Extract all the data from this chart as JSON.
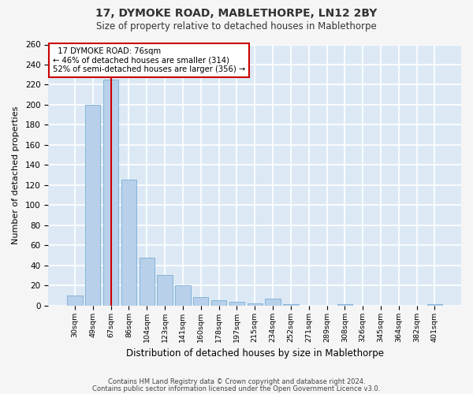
{
  "title1": "17, DYMOKE ROAD, MABLETHORPE, LN12 2BY",
  "title2": "Size of property relative to detached houses in Mablethorpe",
  "xlabel": "Distribution of detached houses by size in Mablethorpe",
  "ylabel": "Number of detached properties",
  "categories": [
    "30sqm",
    "49sqm",
    "67sqm",
    "86sqm",
    "104sqm",
    "123sqm",
    "141sqm",
    "160sqm",
    "178sqm",
    "197sqm",
    "215sqm",
    "234sqm",
    "252sqm",
    "271sqm",
    "289sqm",
    "308sqm",
    "326sqm",
    "345sqm",
    "364sqm",
    "382sqm",
    "401sqm"
  ],
  "values": [
    10,
    200,
    225,
    125,
    48,
    30,
    20,
    8,
    5,
    4,
    2,
    7,
    1,
    0,
    0,
    1,
    0,
    0,
    0,
    0,
    1
  ],
  "bar_color": "#b8d0ea",
  "bar_edge_color": "#7aadd4",
  "background_color": "#dce9f5",
  "grid_color": "#ffffff",
  "vline_x": 2,
  "vline_color": "#cc0000",
  "annotation_text": "  17 DYMOKE ROAD: 76sqm\n← 46% of detached houses are smaller (314)\n52% of semi-detached houses are larger (356) →",
  "footnote1": "Contains HM Land Registry data © Crown copyright and database right 2024.",
  "footnote2": "Contains public sector information licensed under the Open Government Licence v3.0.",
  "ylim": [
    0,
    260
  ],
  "yticks": [
    0,
    20,
    40,
    60,
    80,
    100,
    120,
    140,
    160,
    180,
    200,
    220,
    240,
    260
  ],
  "fig_facecolor": "#f5f5f5"
}
